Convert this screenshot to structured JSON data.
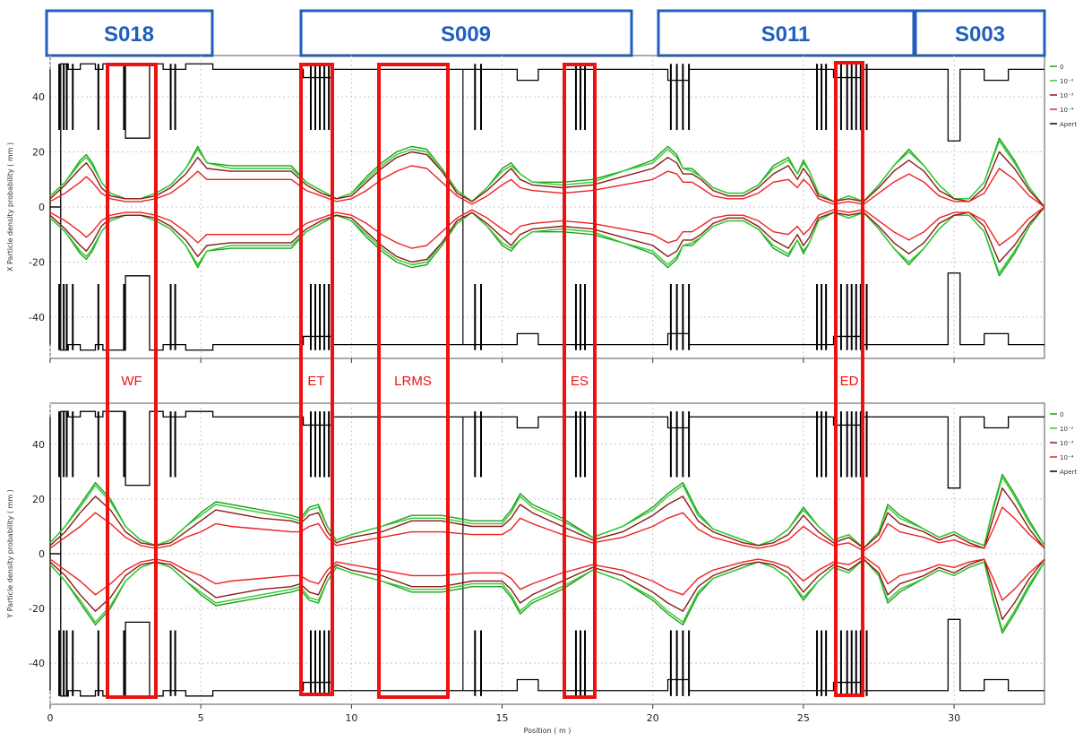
{
  "colors": {
    "section_border": "#1f5fbf",
    "section_text": "#1f5fbf",
    "region": "#ee1111",
    "aperture": "#000000",
    "grid": "#c8c8c8"
  },
  "sections": [
    "S018",
    "S009",
    "S011",
    "S003"
  ],
  "regions": [
    "WF",
    "ET",
    "LRMS",
    "ES",
    "ED"
  ],
  "chart_data": [
    {
      "type": "line",
      "ylabel": "X Particle density probability ( mm )",
      "xlabel": "",
      "xlim": [
        0,
        33
      ],
      "ylim": [
        -55,
        55
      ],
      "x_ticks": [
        "0",
        "5",
        "10",
        "15",
        "20",
        "25",
        "30"
      ],
      "y_ticks": [
        "40",
        "20",
        "0",
        "-20",
        "-40"
      ],
      "grid": true,
      "legend_placement": "right",
      "legend": [
        "0",
        "10⁻²",
        "10⁻³",
        "10⁻⁴",
        "Apert"
      ],
      "x": [
        0,
        0.5,
        1,
        1.2,
        1.4,
        1.7,
        2,
        2.5,
        3,
        3.5,
        4,
        4.5,
        4.9,
        5.2,
        6,
        7,
        8,
        8.5,
        9,
        9.5,
        10,
        10.5,
        11,
        11.5,
        12,
        12.5,
        13,
        13.5,
        14,
        14.5,
        15,
        15.3,
        15.6,
        16,
        17,
        18,
        19,
        20,
        20.5,
        20.8,
        21,
        21.3,
        21.6,
        22,
        22.5,
        23,
        23.5,
        24,
        24.5,
        24.8,
        25,
        25.2,
        25.5,
        26,
        26.5,
        27,
        27.5,
        28,
        28.5,
        29,
        29.5,
        30,
        30.5,
        31,
        31.5,
        32,
        32.5,
        33
      ],
      "series": [
        {
          "name": "0",
          "color": "#1fa01f",
          "values": [
            4,
            9,
            17,
            19,
            16,
            9,
            5,
            3,
            3,
            5,
            8,
            14,
            22,
            16,
            15,
            15,
            15,
            9,
            6,
            3,
            5,
            11,
            16,
            20,
            22,
            21,
            14,
            6,
            2,
            7,
            14,
            16,
            12,
            9,
            9,
            10,
            13,
            17,
            22,
            19,
            14,
            14,
            11,
            7,
            5,
            5,
            8,
            15,
            18,
            12,
            17,
            13,
            5,
            2,
            4,
            2,
            8,
            15,
            21,
            15,
            8,
            3,
            3,
            9,
            25,
            17,
            7,
            0
          ]
        },
        {
          "name": "10⁻²",
          "color": "#2ecc2e",
          "values": [
            4,
            9,
            16,
            18,
            15,
            9,
            5,
            3,
            3,
            5,
            8,
            14,
            21,
            16,
            14,
            14,
            14,
            9,
            6,
            3,
            5,
            10,
            15,
            19,
            21,
            20,
            13,
            6,
            2,
            7,
            13,
            15,
            12,
            9,
            8,
            9,
            13,
            16,
            21,
            18,
            14,
            13,
            11,
            7,
            5,
            5,
            8,
            14,
            17,
            12,
            16,
            13,
            5,
            2,
            4,
            2,
            8,
            15,
            20,
            15,
            8,
            3,
            3,
            9,
            24,
            16,
            7,
            0
          ]
        },
        {
          "name": "10⁻³",
          "color": "#8b1a1a",
          "values": [
            3,
            8,
            14,
            16,
            13,
            7,
            4,
            3,
            3,
            4,
            7,
            12,
            18,
            14,
            13,
            13,
            13,
            8,
            5,
            3,
            4,
            9,
            14,
            18,
            20,
            19,
            13,
            5,
            2,
            6,
            11,
            14,
            10,
            8,
            7,
            8,
            11,
            14,
            18,
            16,
            12,
            12,
            10,
            6,
            4,
            4,
            7,
            12,
            15,
            10,
            14,
            11,
            4,
            2,
            3,
            2,
            7,
            13,
            17,
            13,
            6,
            3,
            2,
            7,
            20,
            14,
            6,
            0
          ]
        },
        {
          "name": "10⁻⁴",
          "color": "#ee2222",
          "values": [
            2,
            5,
            9,
            11,
            9,
            5,
            3,
            2,
            2,
            3,
            5,
            9,
            13,
            10,
            10,
            10,
            10,
            6,
            4,
            2,
            3,
            6,
            10,
            13,
            15,
            14,
            9,
            4,
            1,
            4,
            8,
            10,
            7,
            6,
            5,
            6,
            8,
            10,
            13,
            12,
            9,
            9,
            7,
            4,
            3,
            3,
            5,
            9,
            10,
            7,
            10,
            8,
            3,
            1,
            2,
            1,
            5,
            9,
            12,
            9,
            4,
            2,
            2,
            5,
            14,
            10,
            4,
            0
          ]
        }
      ]
    },
    {
      "type": "line",
      "ylabel": "Y Particle density probability ( mm )",
      "xlabel": "Position ( m )",
      "xlim": [
        0,
        33
      ],
      "ylim": [
        -55,
        55
      ],
      "x_ticks": [
        "0",
        "5",
        "10",
        "15",
        "20",
        "25",
        "30"
      ],
      "y_ticks": [
        "40",
        "20",
        "0",
        "-20",
        "-40"
      ],
      "grid": true,
      "legend_placement": "right",
      "legend": [
        "0",
        "10⁻²",
        "10⁻³",
        "10⁻⁴",
        "Apert"
      ],
      "x": [
        0,
        0.5,
        1,
        1.5,
        2,
        2.5,
        3,
        3.5,
        4,
        4.5,
        5,
        5.5,
        6,
        7,
        8,
        8.3,
        8.6,
        8.9,
        9.2,
        9.5,
        10,
        11,
        12,
        13,
        14,
        15,
        15.3,
        15.6,
        16,
        17,
        18,
        19,
        20,
        20.5,
        21,
        21.5,
        22,
        23,
        23.5,
        24,
        24.5,
        25,
        25.5,
        26,
        26.5,
        27,
        27.5,
        27.8,
        28.2,
        29,
        29.5,
        30,
        30.5,
        31,
        31.3,
        31.6,
        32,
        32.5,
        33
      ],
      "series": [
        {
          "name": "0",
          "color": "#1fa01f",
          "values": [
            4,
            10,
            18,
            26,
            20,
            10,
            5,
            3,
            5,
            10,
            15,
            19,
            18,
            16,
            14,
            13,
            17,
            18,
            10,
            5,
            7,
            10,
            14,
            14,
            12,
            12,
            16,
            22,
            18,
            13,
            6,
            10,
            17,
            22,
            26,
            15,
            9,
            5,
            3,
            5,
            9,
            17,
            10,
            5,
            7,
            2,
            8,
            18,
            14,
            9,
            6,
            8,
            5,
            3,
            17,
            29,
            22,
            12,
            3
          ]
        },
        {
          "name": "10⁻²",
          "color": "#2ecc2e",
          "values": [
            4,
            10,
            17,
            25,
            19,
            10,
            5,
            3,
            5,
            10,
            14,
            18,
            17,
            15,
            13,
            12,
            16,
            17,
            10,
            5,
            7,
            10,
            13,
            13,
            11,
            11,
            15,
            21,
            17,
            12,
            6,
            10,
            16,
            21,
            25,
            14,
            9,
            5,
            3,
            5,
            9,
            16,
            10,
            5,
            7,
            2,
            8,
            17,
            13,
            9,
            6,
            8,
            5,
            3,
            16,
            28,
            21,
            11,
            3
          ]
        },
        {
          "name": "10⁻³",
          "color": "#8b1a1a",
          "values": [
            3,
            8,
            15,
            21,
            16,
            8,
            4,
            3,
            4,
            8,
            12,
            16,
            15,
            13,
            12,
            11,
            14,
            15,
            8,
            4,
            6,
            8,
            12,
            12,
            10,
            10,
            13,
            18,
            15,
            10,
            5,
            8,
            14,
            18,
            21,
            12,
            8,
            4,
            3,
            4,
            7,
            14,
            8,
            4,
            6,
            2,
            7,
            15,
            11,
            8,
            5,
            7,
            4,
            2,
            13,
            24,
            18,
            9,
            2
          ]
        },
        {
          "name": "10⁻⁴",
          "color": "#ee2222",
          "values": [
            2,
            6,
            10,
            15,
            11,
            6,
            3,
            2,
            3,
            6,
            8,
            11,
            10,
            9,
            8,
            8,
            10,
            11,
            6,
            3,
            4,
            6,
            8,
            8,
            7,
            7,
            9,
            13,
            11,
            7,
            4,
            6,
            10,
            13,
            15,
            9,
            6,
            3,
            2,
            3,
            5,
            10,
            6,
            3,
            4,
            1,
            5,
            11,
            8,
            6,
            4,
            5,
            3,
            2,
            9,
            17,
            13,
            7,
            2
          ]
        }
      ]
    }
  ]
}
